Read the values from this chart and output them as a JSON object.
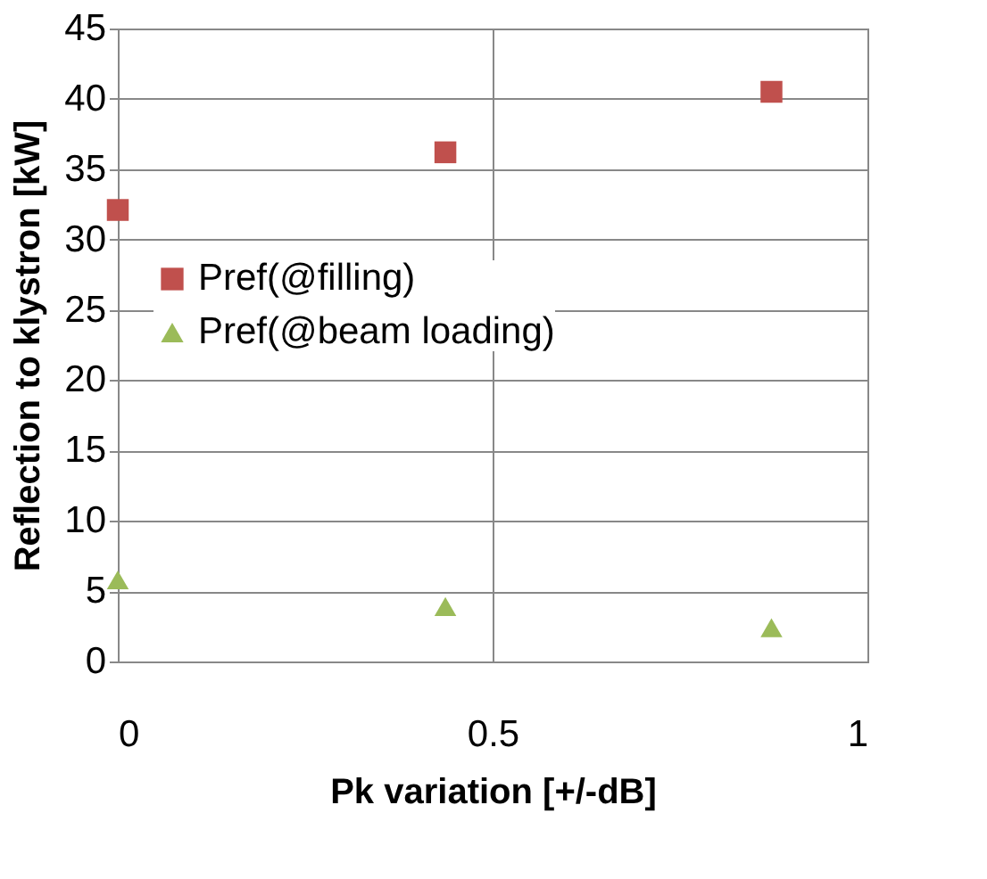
{
  "chart_data": {
    "type": "scatter",
    "xlabel": "Pk variation [+/-dB]",
    "ylabel": "Reflection  to klystron [kW]",
    "x": [
      0,
      0.437,
      0.872
    ],
    "series": [
      {
        "name": "Pref(@filling)",
        "color": "#c0504d",
        "values": [
          32.1,
          36.2,
          40.5
        ],
        "marker": "square"
      },
      {
        "name": "Pref(@beam loading)",
        "color": "#9bbb59",
        "values": [
          5.8,
          3.9,
          2.4
        ],
        "marker": "triangle"
      }
    ],
    "xlim": [
      0,
      1
    ],
    "xticks": [
      0,
      0.5,
      1
    ],
    "ylim": [
      0,
      45
    ],
    "yticks": [
      0,
      5,
      10,
      15,
      20,
      25,
      30,
      35,
      40,
      45
    ],
    "grid": true,
    "legend": "left"
  }
}
